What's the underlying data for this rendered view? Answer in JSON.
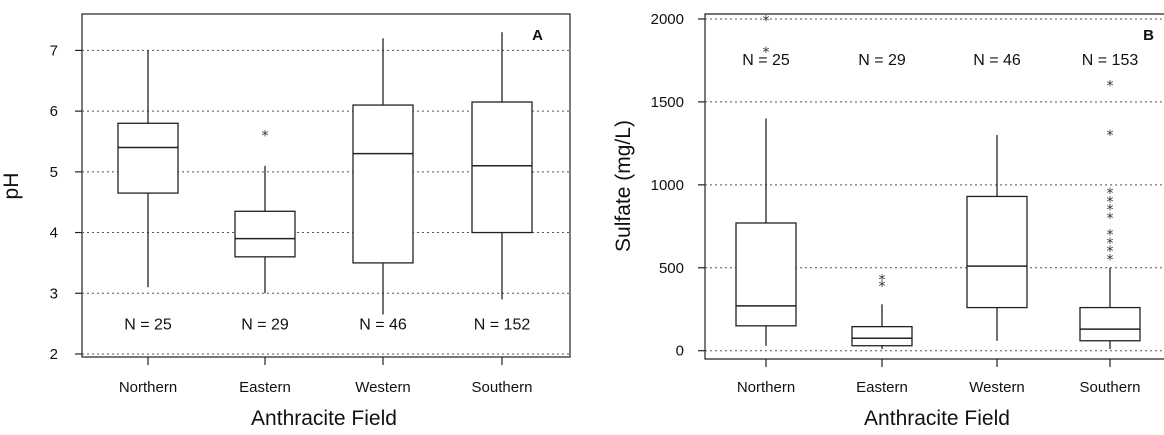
{
  "chart_data": [
    {
      "type": "box",
      "panel_label": "A",
      "xlabel": "Anthracite Field",
      "ylabel": "pH",
      "ylim": [
        1.95,
        7.6
      ],
      "yticks": [
        2,
        3,
        4,
        5,
        6,
        7
      ],
      "grid": "dotted horizontal",
      "categories": [
        "Northern",
        "Eastern",
        "Western",
        "Southern"
      ],
      "n_labels": [
        "N = 25",
        "N = 29",
        "N = 46",
        "N = 152"
      ],
      "n_label_y": 2.5,
      "boxes": [
        {
          "min": 3.1,
          "q1": 4.65,
          "median": 5.4,
          "q3": 5.8,
          "max": 7.0,
          "outliers": []
        },
        {
          "min": 3.0,
          "q1": 3.6,
          "median": 3.9,
          "q3": 4.35,
          "max": 5.1,
          "outliers": [
            5.6
          ]
        },
        {
          "min": 2.65,
          "q1": 3.5,
          "median": 5.3,
          "q3": 6.1,
          "max": 7.2,
          "outliers": []
        },
        {
          "min": 2.9,
          "q1": 4.0,
          "median": 5.1,
          "q3": 6.15,
          "max": 7.3,
          "outliers": []
        }
      ]
    },
    {
      "type": "box",
      "panel_label": "B",
      "xlabel": "Anthracite Field",
      "ylabel": "Sulfate (mg/L)",
      "ylim": [
        -50,
        2030
      ],
      "yticks": [
        0,
        500,
        1000,
        1500,
        2000
      ],
      "grid": "dotted horizontal",
      "categories": [
        "Northern",
        "Eastern",
        "Western",
        "Southern"
      ],
      "n_labels": [
        "N = 25",
        "N = 29",
        "N = 46",
        "N = 153"
      ],
      "n_label_y": 1760,
      "boxes": [
        {
          "min": 30,
          "q1": 150,
          "median": 270,
          "q3": 770,
          "max": 1400,
          "outliers": [
            1800,
            1990
          ]
        },
        {
          "min": 10,
          "q1": 30,
          "median": 75,
          "q3": 145,
          "max": 280,
          "outliers": [
            390,
            430
          ]
        },
        {
          "min": 60,
          "q1": 260,
          "median": 510,
          "q3": 930,
          "max": 1300,
          "outliers": []
        },
        {
          "min": 10,
          "q1": 60,
          "median": 130,
          "q3": 260,
          "max": 500,
          "outliers": [
            550,
            600,
            650,
            700,
            800,
            850,
            900,
            950,
            1300,
            1600
          ]
        }
      ]
    }
  ]
}
